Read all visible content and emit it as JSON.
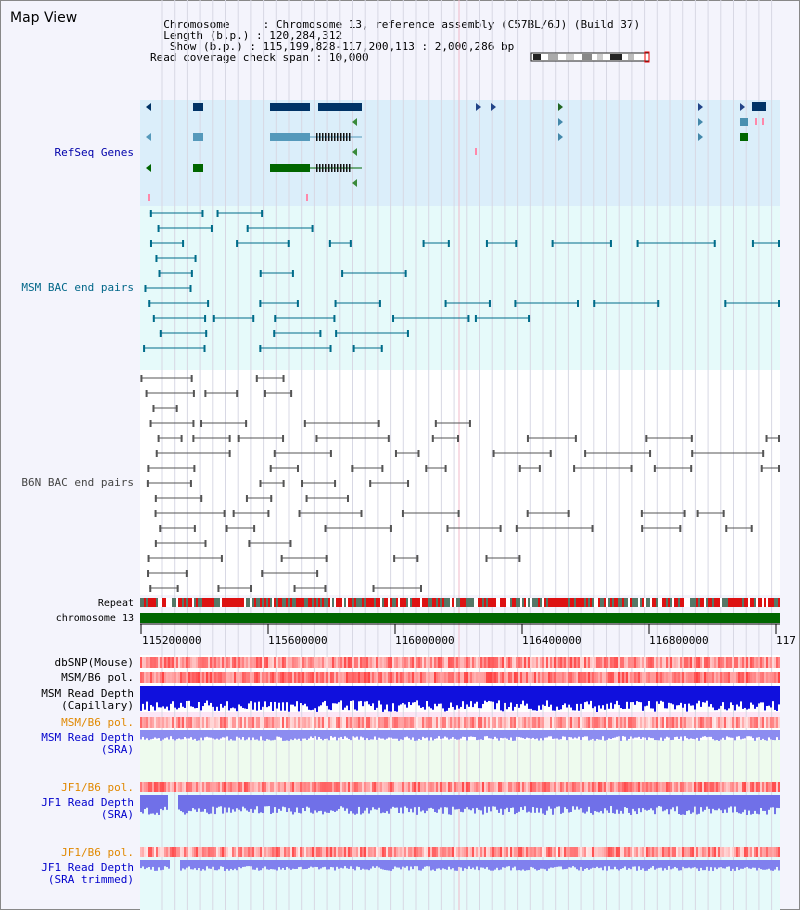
{
  "header": {
    "title": "Map View",
    "chromosome_label": "Chromosome",
    "chromosome_value": "Chromosome 13, reference assembly (C57BL/6J) (Build 37)",
    "length_label": "Length (b.p.)",
    "length_value": "120,284,312",
    "show_label": "Show (b.p.)",
    "show_value": "115,199,828-117,200,113 : 2,000,286 bp",
    "coverage_label": "Read coverage check span",
    "coverage_value": "10,000"
  },
  "tracks": {
    "refseq": "RefSeq Genes",
    "msm_bac": "MSM BAC end pairs",
    "b6n_bac": "B6N BAC end pairs",
    "repeat": "Repeat",
    "chromosome": "chromosome 13",
    "dbsnp": "dbSNP(Mouse)",
    "msm_b6_pol_1": "MSM/B6 pol.",
    "msm_read_depth_cap_1": "MSM Read Depth",
    "msm_read_depth_cap_2": "(Capillary)",
    "msm_b6_pol_2": "MSM/B6 pol.",
    "msm_read_depth_sra_1": "MSM Read Depth",
    "msm_read_depth_sra_2": "(SRA)",
    "jf1_b6_pol_1": "JF1/B6 pol.",
    "jf1_read_depth_sra_1": "JF1 Read Depth",
    "jf1_read_depth_sra_2": "(SRA)",
    "jf1_b6_pol_2": "JF1/B6 pol.",
    "jf1_read_depth_trim_1": "JF1 Read Depth",
    "jf1_read_depth_trim_2": "(SRA trimmed)"
  },
  "axis": {
    "ticks": [
      "115200000",
      "115600000",
      "116000000",
      "116400000",
      "116800000",
      "117"
    ]
  },
  "colors": {
    "refseq_bg": "#dbeefa",
    "refseq_label": "#0000aa",
    "msm_label": "#006688",
    "msm_color": "#006c8a",
    "b6n_label": "#444444",
    "b6n_color": "#555555",
    "chromosome_bar": "#006600",
    "pol_orange": "#e08800",
    "read_depth_blue": "#0000cc"
  }
}
